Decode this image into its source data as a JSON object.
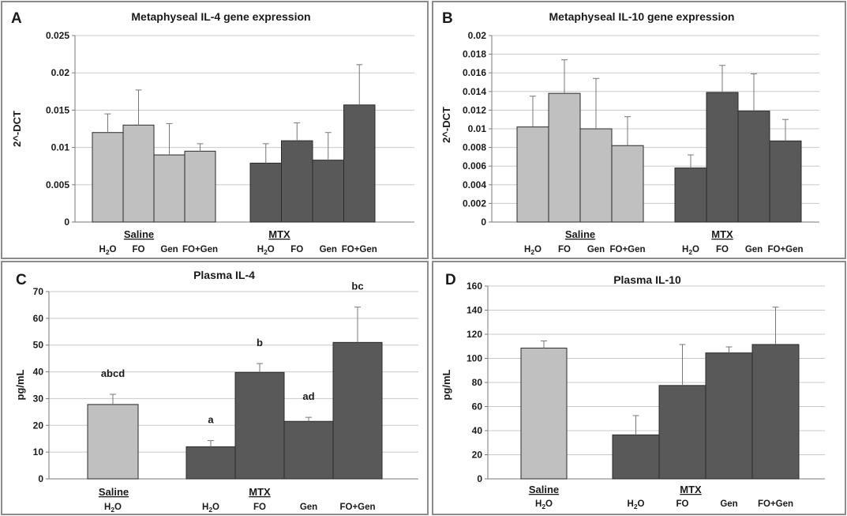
{
  "colors": {
    "saline": "#c0c0c0",
    "mtx": "#595959"
  },
  "chart_data": [
    {
      "type": "bar",
      "panel": "A",
      "title": "Metaphyseal IL-4 gene expression",
      "ylabel": "2^-DCT",
      "ylim": [
        0,
        0.025
      ],
      "yticks": [
        0,
        0.005,
        0.01,
        0.015,
        0.02,
        0.025
      ],
      "ytick_labels": [
        "0",
        "0.005",
        "0.01",
        "0.015",
        "0.02",
        "0.025"
      ],
      "grid": true,
      "groups": [
        {
          "label": "Saline",
          "color_key": "saline",
          "categories": [
            "H2O",
            "FO",
            "Gen",
            "FO+Gen"
          ],
          "values": [
            0.012,
            0.013,
            0.009,
            0.0095
          ],
          "errors": [
            0.0025,
            0.0047,
            0.0042,
            0.001
          ],
          "sig": []
        },
        {
          "label": "MTX",
          "color_key": "mtx",
          "categories": [
            "H2O",
            "FO",
            "Gen",
            "FO+Gen"
          ],
          "values": [
            0.0079,
            0.0109,
            0.0083,
            0.0157
          ],
          "errors": [
            0.0026,
            0.0024,
            0.0037,
            0.0054
          ],
          "sig": []
        }
      ]
    },
    {
      "type": "bar",
      "panel": "B",
      "title": "Metaphyseal IL-10 gene expression",
      "ylabel": "2^-DCT",
      "ylim": [
        0,
        0.02
      ],
      "yticks": [
        0,
        0.002,
        0.004,
        0.006,
        0.008,
        0.01,
        0.012,
        0.014,
        0.016,
        0.018,
        0.02
      ],
      "ytick_labels": [
        "0",
        "0.002",
        "0.004",
        "0.006",
        "0.008",
        "0.01",
        "0.012",
        "0.014",
        "0.016",
        "0.018",
        "0.02"
      ],
      "grid": true,
      "groups": [
        {
          "label": "Saline",
          "color_key": "saline",
          "categories": [
            "H2O",
            "FO",
            "Gen",
            "FO+Gen"
          ],
          "values": [
            0.0102,
            0.0138,
            0.01,
            0.0082
          ],
          "errors": [
            0.0033,
            0.0036,
            0.0054,
            0.0031
          ],
          "sig": []
        },
        {
          "label": "MTX",
          "color_key": "mtx",
          "categories": [
            "H2O",
            "FO",
            "Gen",
            "FO+Gen"
          ],
          "values": [
            0.0058,
            0.0139,
            0.0119,
            0.0087
          ],
          "errors": [
            0.0014,
            0.0029,
            0.004,
            0.0023
          ],
          "sig": []
        }
      ]
    },
    {
      "type": "bar",
      "panel": "C",
      "title": "Plasma IL-4",
      "ylabel": "pg/mL",
      "ylim": [
        0,
        70
      ],
      "yticks": [
        0,
        10,
        20,
        30,
        40,
        50,
        60,
        70
      ],
      "ytick_labels": [
        "0",
        "10",
        "20",
        "30",
        "40",
        "50",
        "60",
        "70"
      ],
      "grid": true,
      "groups": [
        {
          "label": "Saline",
          "color_key": "saline",
          "categories": [
            "H2O"
          ],
          "values": [
            27.8
          ],
          "errors": [
            3.8
          ],
          "sig": [
            "abcd"
          ]
        },
        {
          "label": "MTX",
          "color_key": "mtx",
          "categories": [
            "H2O",
            "FO",
            "Gen",
            "FO+Gen"
          ],
          "values": [
            12.0,
            39.8,
            21.5,
            51.0
          ],
          "errors": [
            2.3,
            3.3,
            1.5,
            13.2
          ],
          "sig": [
            "a",
            "b",
            "ad",
            "bc"
          ]
        }
      ]
    },
    {
      "type": "bar",
      "panel": "D",
      "title": "Plasma IL-10",
      "ylabel": "pg/mL",
      "ylim": [
        0,
        160
      ],
      "yticks": [
        0,
        20,
        40,
        60,
        80,
        100,
        120,
        140,
        160
      ],
      "ytick_labels": [
        "0",
        "20",
        "40",
        "60",
        "80",
        "100",
        "120",
        "140",
        "160"
      ],
      "grid": true,
      "groups": [
        {
          "label": "Saline",
          "color_key": "saline",
          "categories": [
            "H2O"
          ],
          "values": [
            108.5
          ],
          "errors": [
            6
          ],
          "sig": []
        },
        {
          "label": "MTX",
          "color_key": "mtx",
          "categories": [
            "H2O",
            "FO",
            "Gen",
            "FO+Gen"
          ],
          "values": [
            36.5,
            77.5,
            104.5,
            111.5
          ],
          "errors": [
            16,
            34,
            5,
            31
          ],
          "sig": []
        }
      ]
    }
  ]
}
